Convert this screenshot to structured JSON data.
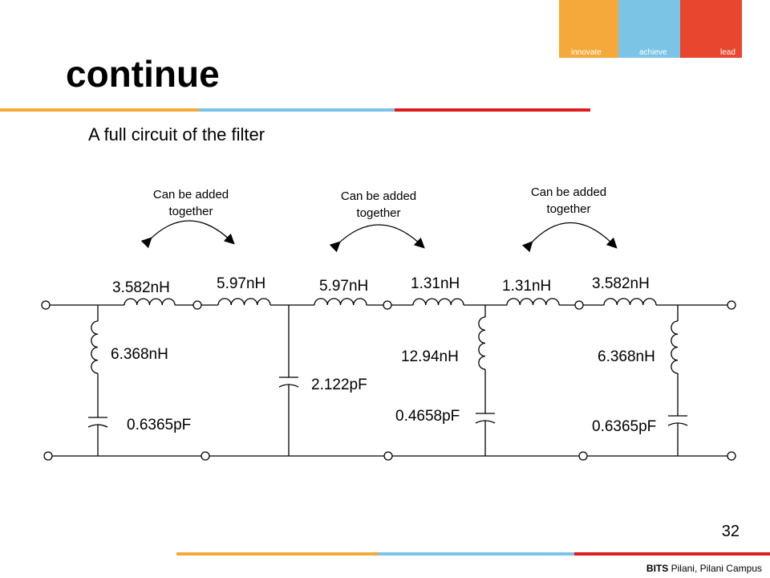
{
  "header": {
    "title": "continue",
    "logo": [
      "innovate",
      "achieve",
      "lead"
    ]
  },
  "subtitle": "A full circuit of the filter",
  "annotations": [
    [
      "Can be added",
      "together"
    ],
    [
      "Can be added",
      "together"
    ],
    [
      "Can be added",
      "together"
    ]
  ],
  "components": [
    "3.582nH",
    "5.97nH",
    "5.97nH",
    "1.31nH",
    "1.31nH",
    "3.582nH",
    "6.368nH",
    "0.6365pF",
    "2.122pF",
    "12.94nH",
    "0.4658pF",
    "6.368nH",
    "0.6365pF"
  ],
  "footer": {
    "page": "32",
    "brand": "BITS",
    "campus": "Pilani, Pilani Campus"
  }
}
